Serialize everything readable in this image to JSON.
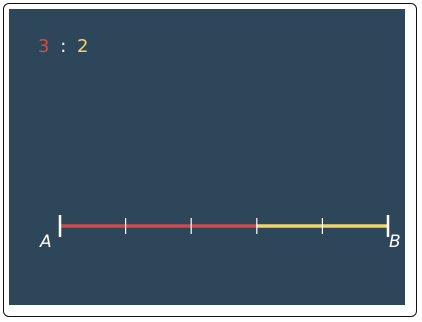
{
  "ratio": {
    "left": "3",
    "separator": ":",
    "right": "2"
  },
  "segment": {
    "start_label": "A",
    "end_label": "B",
    "total_parts": 5,
    "first_part_count": 3,
    "second_part_count": 2
  },
  "colors": {
    "background": "#2e4659",
    "first_part": "#cf4c4c",
    "second_part": "#f2d46b",
    "ticks": "#ffffff"
  }
}
